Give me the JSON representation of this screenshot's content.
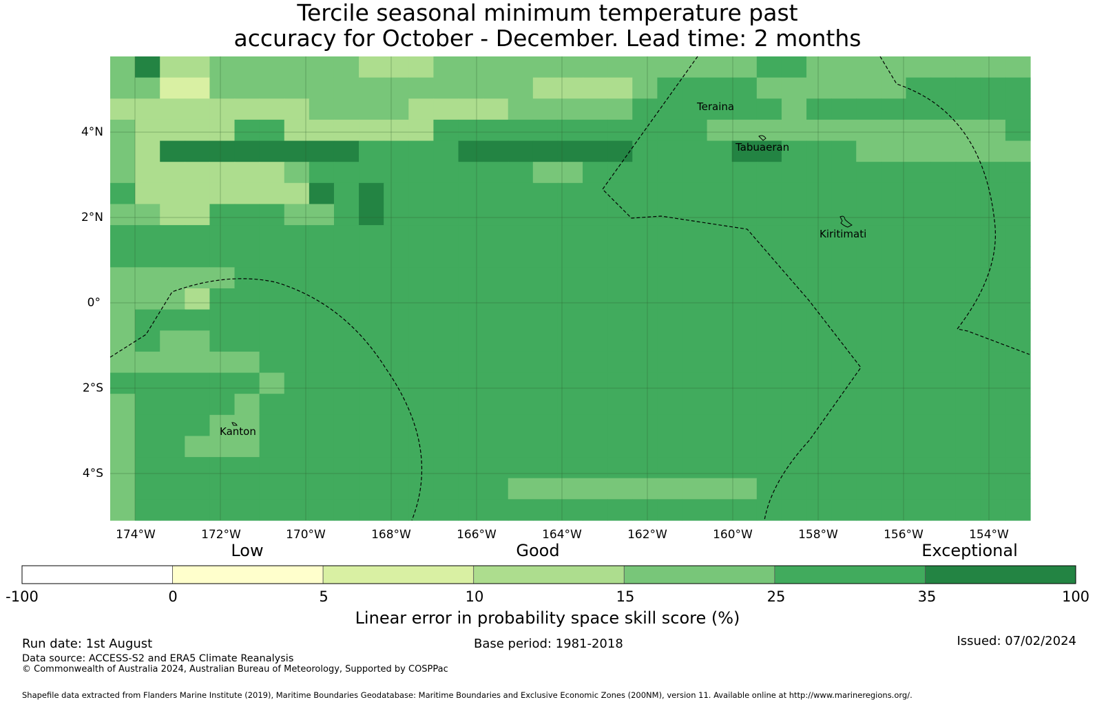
{
  "title": {
    "line1": "Tercile seasonal minimum temperature past",
    "line2": "accuracy for October - December. Lead time: 2 months"
  },
  "map": {
    "lat_ticks": [
      "4°N",
      "2°N",
      "0°",
      "2°S",
      "4°S"
    ],
    "lon_ticks": [
      "174°W",
      "172°W",
      "170°W",
      "168°W",
      "166°W",
      "164°W",
      "162°W",
      "160°W",
      "158°W",
      "156°W",
      "154°W"
    ],
    "place_labels": [
      "Teraina",
      "Tabuaeran",
      "Kiritimati",
      "Kanton"
    ],
    "skill_categories": "digits map to colorbar class index",
    "skill_grid": [
      "4633444444333444444444444455444444444",
      "4422444444444444433334555544444455555",
      "3333333344443333444445555554555555555",
      "4333355333333555555555554444444444445",
      "4366666666555566666665555665554444444",
      "4333333455555555544555555555555555555",
      "5333333365655555555555555555555555555",
      "4433555445655555555555555555555555555",
      "5555555555555555555555555555555555555",
      "5555555555555555555555555555555555555",
      "4444455555555555555555555555555555555",
      "4443555555555555555555555555555555555",
      "4555555555555555555555555555555555555",
      "4544555555555555555555555555555555555",
      "4444445555555555555555555555555555555",
      "5555554555555555555555555555555555555",
      "4555545555555555555555555555555555555",
      "4555445555555555555555555555555555555",
      "4554445555555555555555555555555555555",
      "4555555555555555555555555555555555555",
      "4555555555555555444444444455555555555",
      "4555555555555555555555555555555555555"
    ]
  },
  "legend": {
    "headings": [
      "Low",
      "Good",
      "Exceptional"
    ],
    "bins": [
      "-100",
      "0",
      "5",
      "10",
      "15",
      "25",
      "35",
      "100"
    ],
    "colors": [
      "#ffffff",
      "#ffffcc",
      "#d9f0a3",
      "#addd8e",
      "#78c679",
      "#41ab5d",
      "#238443"
    ],
    "title": "Linear error in probability space skill score (%)"
  },
  "footer": {
    "run_date": "Run date: 1st August",
    "base_period": "Base period: 1981-2018",
    "issued": "Issued: 07/02/2024",
    "data_source": "Data source: ACCESS-S2 and ERA5 Climate Reanalysis",
    "copyright": "© Commonwealth of Australia 2024, Australian Bureau of Meteorology, Supported by COSPPac",
    "shapefile": "Shapefile data extracted from Flanders Marine Institute (2019), Maritime Boundaries Geodatabase: Maritime Boundaries and Exclusive Economic Zones (200NM), version 11. Available online at http://www.marineregions.org/."
  }
}
